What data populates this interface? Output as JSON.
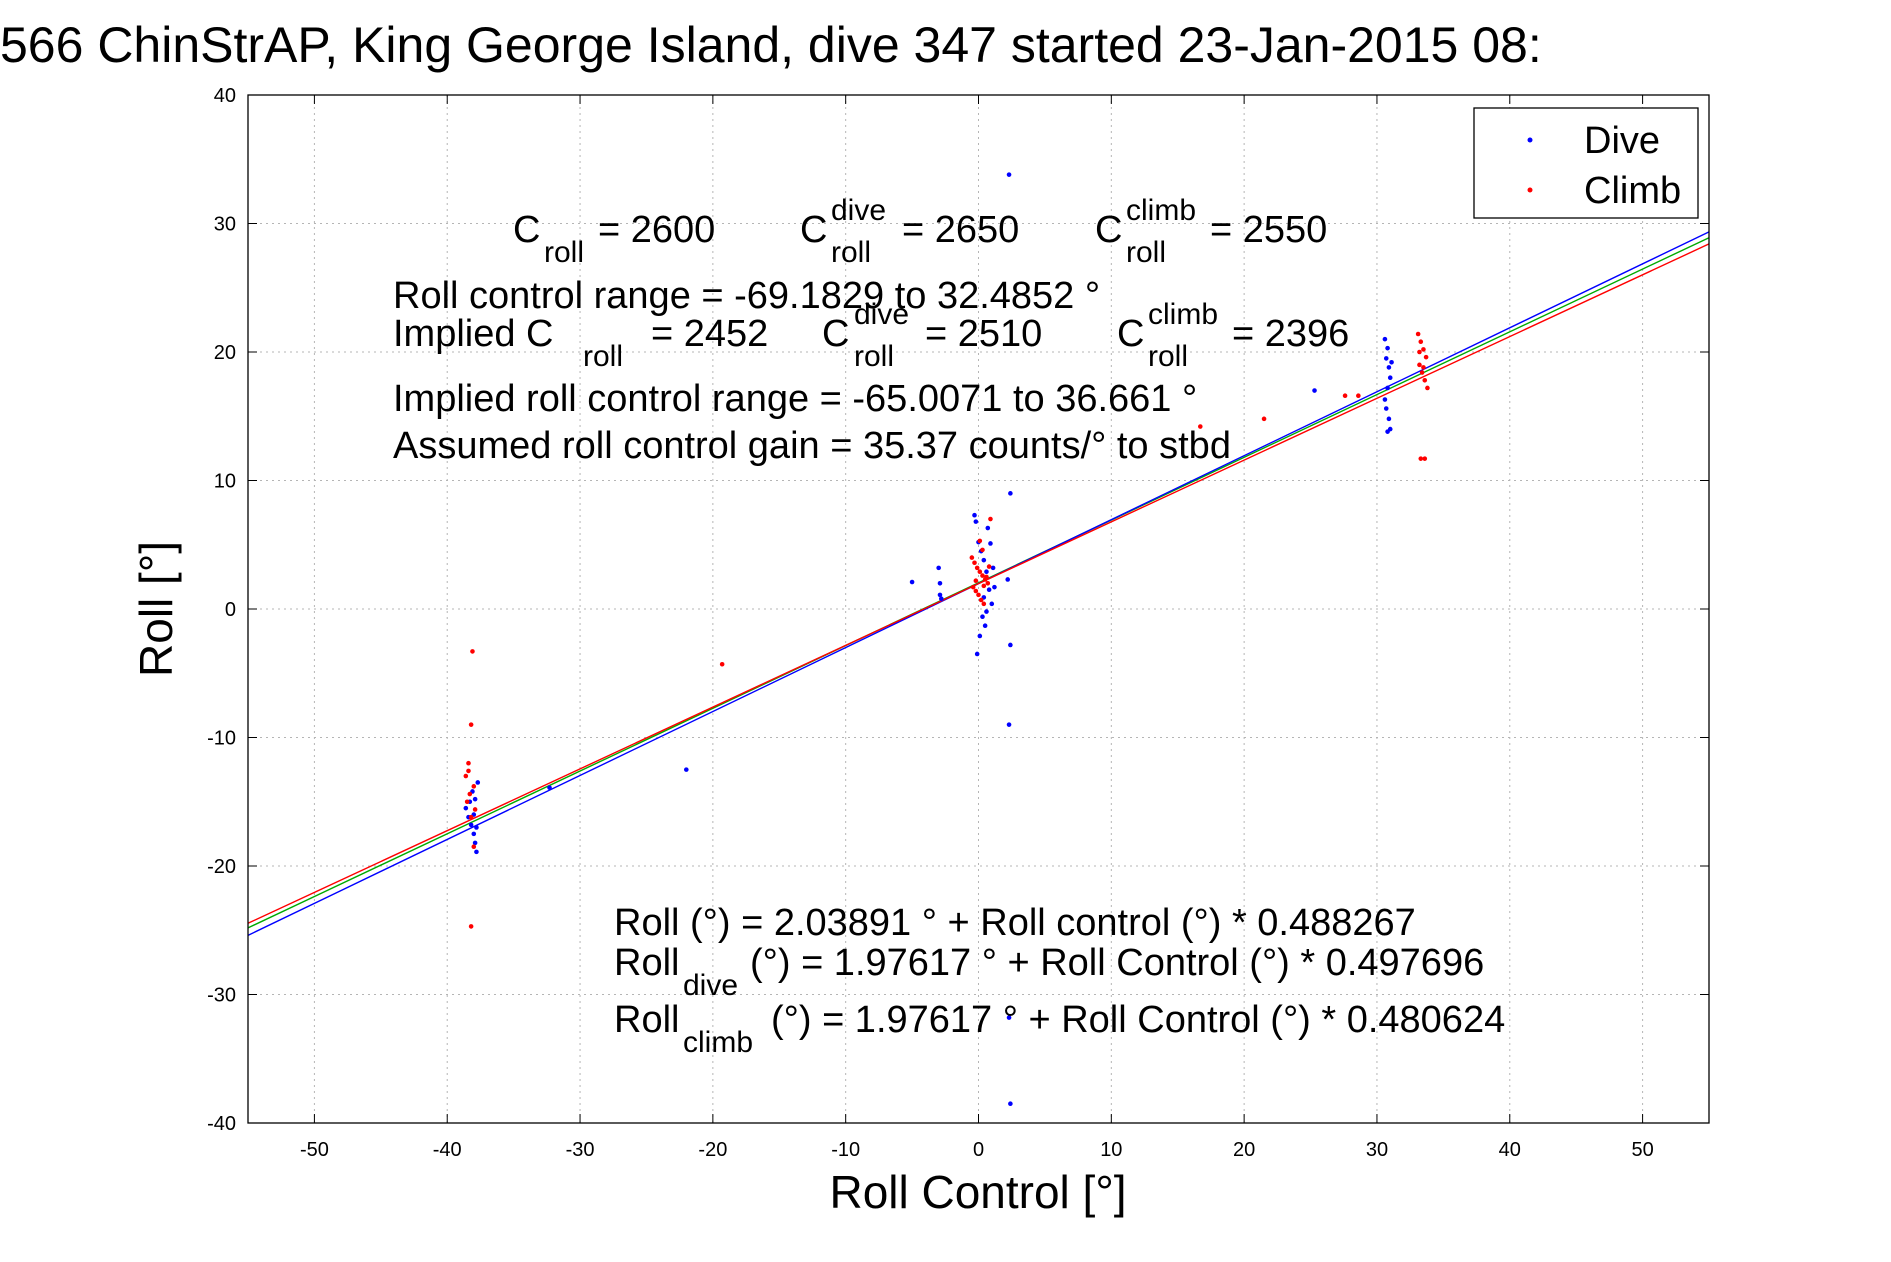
{
  "chart_data": {
    "type": "scatter",
    "title": "566 ChinStrAP, King George Island, dive 347 started 23-Jan-2015 08:",
    "xlabel": "Roll Control [°]",
    "ylabel": "Roll [°]",
    "xlim": [
      -55,
      55
    ],
    "ylim": [
      -40,
      40
    ],
    "xticks": [
      -50,
      -40,
      -30,
      -20,
      -10,
      0,
      10,
      20,
      30,
      40,
      50
    ],
    "yticks": [
      -40,
      -30,
      -20,
      -10,
      0,
      10,
      20,
      30,
      40
    ],
    "grid": true,
    "legend_position": "top-right",
    "colors": {
      "dive": "#0000ff",
      "climb": "#ff0000",
      "fit_all": "#00aa00",
      "fit_dive": "#0000ff",
      "fit_climb": "#ff0000"
    },
    "series": [
      {
        "name": "Dive",
        "color": "#0000ff",
        "points": [
          [
            -38.6,
            -15.5
          ],
          [
            -38.4,
            -16.2
          ],
          [
            -38.2,
            -16.8
          ],
          [
            -38.0,
            -17.5
          ],
          [
            -37.9,
            -18.2
          ],
          [
            -37.8,
            -18.9
          ],
          [
            -37.9,
            -14.8
          ],
          [
            -38.1,
            -14.2
          ],
          [
            -38.3,
            -15.0
          ],
          [
            -37.7,
            -13.5
          ],
          [
            -38.0,
            -16.0
          ],
          [
            -37.8,
            -17.0
          ],
          [
            -32.3,
            -13.9
          ],
          [
            -22.0,
            -12.5
          ],
          [
            -5.0,
            2.1
          ],
          [
            -2.9,
            2.0
          ],
          [
            -2.9,
            1.1
          ],
          [
            -3.0,
            3.2
          ],
          [
            -2.8,
            0.8
          ],
          [
            -0.3,
            7.3
          ],
          [
            -0.2,
            6.8
          ],
          [
            0.0,
            5.2
          ],
          [
            0.2,
            4.5
          ],
          [
            0.4,
            3.8
          ],
          [
            0.6,
            2.9
          ],
          [
            0.8,
            1.5
          ],
          [
            1.0,
            0.4
          ],
          [
            0.3,
            -0.6
          ],
          [
            0.5,
            -1.3
          ],
          [
            0.1,
            -2.1
          ],
          [
            -0.1,
            -3.5
          ],
          [
            0.7,
            6.3
          ],
          [
            0.9,
            5.1
          ],
          [
            1.1,
            3.2
          ],
          [
            1.2,
            1.7
          ],
          [
            0.6,
            -0.2
          ],
          [
            0.4,
            0.9
          ],
          [
            2.3,
            33.8
          ],
          [
            2.4,
            9.0
          ],
          [
            2.2,
            2.3
          ],
          [
            2.4,
            -2.8
          ],
          [
            2.3,
            -9.0
          ],
          [
            2.4,
            -38.5
          ],
          [
            2.3,
            -31.8
          ],
          [
            25.3,
            17.0
          ],
          [
            30.6,
            21.0
          ],
          [
            30.8,
            20.3
          ],
          [
            30.7,
            19.5
          ],
          [
            30.9,
            18.8
          ],
          [
            31.0,
            18.0
          ],
          [
            30.8,
            17.2
          ],
          [
            30.6,
            16.3
          ],
          [
            30.7,
            15.6
          ],
          [
            30.9,
            14.8
          ],
          [
            31.0,
            14.0
          ],
          [
            30.8,
            13.8
          ],
          [
            31.1,
            19.2
          ]
        ]
      },
      {
        "name": "Climb",
        "color": "#ff0000",
        "points": [
          [
            -38.1,
            -3.3
          ],
          [
            -38.2,
            -9.0
          ],
          [
            -38.4,
            -12.0
          ],
          [
            -38.6,
            -13.0
          ],
          [
            -38.0,
            -13.8
          ],
          [
            -38.3,
            -14.4
          ],
          [
            -38.5,
            -15.0
          ],
          [
            -37.9,
            -15.6
          ],
          [
            -38.2,
            -16.2
          ],
          [
            -38.0,
            -18.5
          ],
          [
            -38.2,
            -24.7
          ],
          [
            -38.4,
            -12.6
          ],
          [
            -19.3,
            -4.3
          ],
          [
            -0.5,
            4.0
          ],
          [
            -0.3,
            3.6
          ],
          [
            -0.1,
            3.2
          ],
          [
            0.1,
            2.9
          ],
          [
            0.3,
            2.6
          ],
          [
            0.5,
            2.3
          ],
          [
            0.7,
            2.0
          ],
          [
            -0.4,
            1.7
          ],
          [
            -0.2,
            1.4
          ],
          [
            0.0,
            1.1
          ],
          [
            0.2,
            0.7
          ],
          [
            0.4,
            0.4
          ],
          [
            0.6,
            2.5
          ],
          [
            0.8,
            3.3
          ],
          [
            0.3,
            4.6
          ],
          [
            0.1,
            5.3
          ],
          [
            0.9,
            7.0
          ],
          [
            -0.2,
            2.2
          ],
          [
            0.4,
            1.8
          ],
          [
            16.7,
            14.2
          ],
          [
            21.5,
            14.8
          ],
          [
            27.6,
            16.6
          ],
          [
            28.6,
            16.6
          ],
          [
            33.1,
            21.4
          ],
          [
            33.3,
            20.8
          ],
          [
            33.5,
            20.2
          ],
          [
            33.7,
            19.6
          ],
          [
            33.2,
            19.0
          ],
          [
            33.4,
            18.4
          ],
          [
            33.6,
            17.8
          ],
          [
            33.8,
            17.2
          ],
          [
            33.3,
            11.7
          ],
          [
            33.6,
            11.7
          ],
          [
            33.5,
            18.8
          ],
          [
            33.2,
            20.0
          ]
        ]
      }
    ],
    "fit_lines": [
      {
        "id": "all",
        "color": "#00aa00",
        "intercept": 2.03891,
        "slope": 0.488267
      },
      {
        "id": "dive",
        "color": "#0000ff",
        "intercept": 1.97617,
        "slope": 0.497696
      },
      {
        "id": "climb",
        "color": "#ff0000",
        "intercept": 1.97617,
        "slope": 0.480624
      }
    ],
    "annotations": {
      "c_roll": "C",
      "c_roll_sub": "roll",
      "c_roll_val": "= 2600",
      "c_dive": "C",
      "c_dive_sup": "dive",
      "c_dive_sub": "roll",
      "c_dive_val": "= 2650",
      "c_climb": "C",
      "c_climb_sup": "climb",
      "c_climb_sub": "roll",
      "c_climb_val": "= 2550",
      "range_line": "Roll control range = -69.1829 to 32.4852 °",
      "implied_prefix": "Implied C",
      "implied_sub": "roll",
      "implied_val": "= 2452",
      "implied_dive_c": "C",
      "implied_dive_sup": "dive",
      "implied_dive_sub": "roll",
      "implied_dive_val": "= 2510",
      "implied_climb_c": "C",
      "implied_climb_sup": "climb",
      "implied_climb_sub": "roll",
      "implied_climb_val": "= 2396",
      "implied_range": "Implied roll control range = -65.0071 to 36.661 °",
      "gain": "Assumed roll control gain = 35.37 counts/° to stbd",
      "fit_all": "Roll (°) = 2.03891 ° + Roll control (°) * 0.488267",
      "fit_dive_prefix": "Roll",
      "fit_dive_sub": "dive",
      "fit_dive_rest": "(°) = 1.97617 ° + Roll Control (°) * 0.497696",
      "fit_climb_prefix": "Roll",
      "fit_climb_sub": "climb",
      "fit_climb_rest": "(°) = 1.97617 ° + Roll Control (°) * 0.480624"
    }
  }
}
